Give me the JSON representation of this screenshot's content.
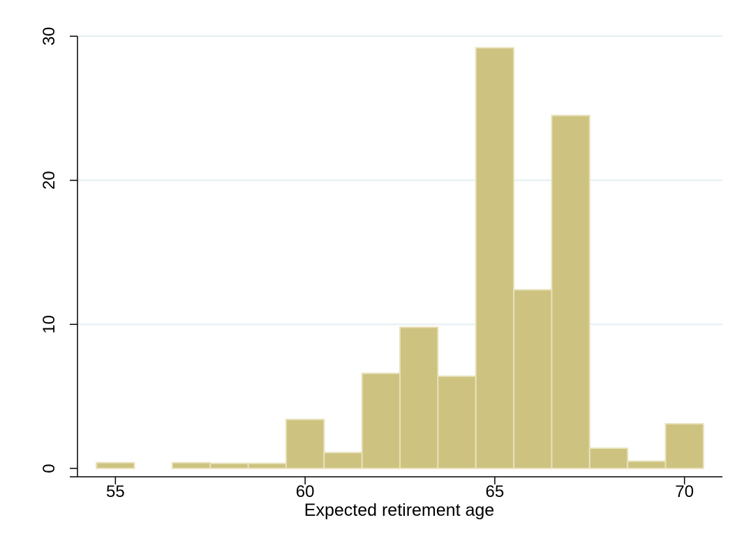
{
  "chart_data": {
    "type": "bar",
    "xlabel": "Expected retirement age",
    "ylabel": "",
    "xlim": [
      54,
      71
    ],
    "ylim": [
      0,
      30
    ],
    "x_ticks": [
      55,
      60,
      65,
      70
    ],
    "y_ticks": [
      0,
      10,
      20,
      30
    ],
    "grid": true,
    "bar_color": "#cdc27f",
    "bar_edge_color": "#e8e2bc",
    "grid_color": "#e6eef0",
    "bins": [
      {
        "start": 54.5,
        "end": 55.5,
        "value": 0.4
      },
      {
        "start": 56.5,
        "end": 57.5,
        "value": 0.4
      },
      {
        "start": 57.5,
        "end": 58.5,
        "value": 0.35
      },
      {
        "start": 58.5,
        "end": 59.5,
        "value": 0.35
      },
      {
        "start": 59.5,
        "end": 60.5,
        "value": 3.4
      },
      {
        "start": 60.5,
        "end": 61.5,
        "value": 1.1
      },
      {
        "start": 61.5,
        "end": 62.5,
        "value": 6.6
      },
      {
        "start": 62.5,
        "end": 63.5,
        "value": 9.8
      },
      {
        "start": 63.5,
        "end": 64.5,
        "value": 6.4
      },
      {
        "start": 64.5,
        "end": 65.5,
        "value": 29.2
      },
      {
        "start": 65.5,
        "end": 66.5,
        "value": 12.4
      },
      {
        "start": 66.5,
        "end": 67.5,
        "value": 24.5
      },
      {
        "start": 67.5,
        "end": 68.5,
        "value": 1.4
      },
      {
        "start": 68.5,
        "end": 69.5,
        "value": 0.5
      },
      {
        "start": 69.5,
        "end": 70.5,
        "value": 3.1
      }
    ]
  }
}
